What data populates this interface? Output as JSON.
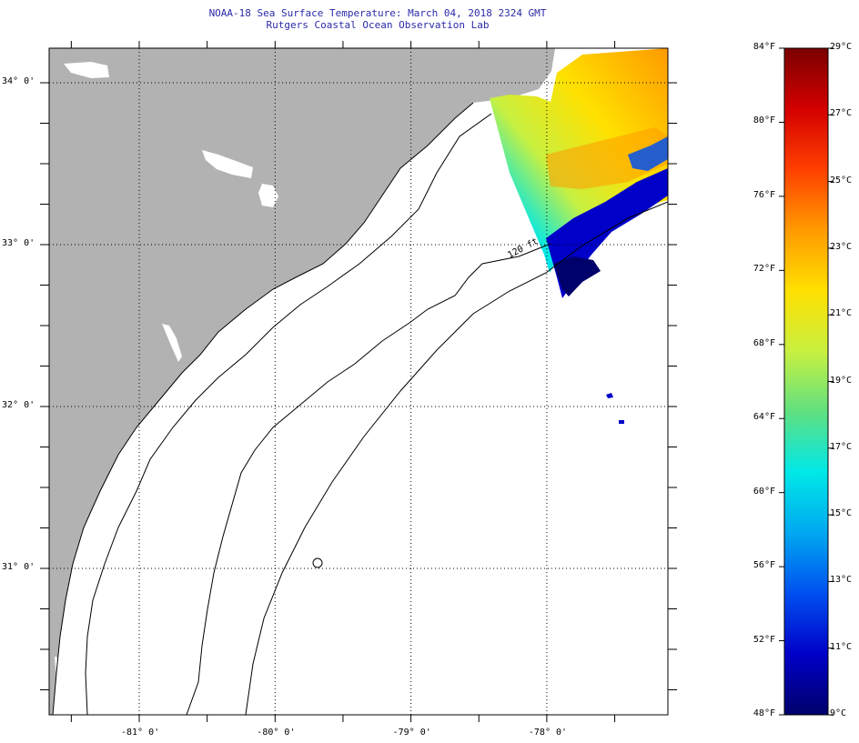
{
  "title": {
    "line1": "NOAA-18 Sea Surface Temperature:  March 04, 2018 2324 GMT",
    "line2": "Rutgers Coastal Ocean Observation Lab"
  },
  "map": {
    "lon_ticks": [
      {
        "value": -81,
        "label": "-81° 0'"
      },
      {
        "value": -80,
        "label": "-80° 0'"
      },
      {
        "value": -79,
        "label": "-79° 0'"
      },
      {
        "value": -78,
        "label": "-78° 0'"
      }
    ],
    "lat_ticks": [
      {
        "value": 34,
        "label": "34° 0'"
      },
      {
        "value": 33,
        "label": "33° 0'"
      },
      {
        "value": 32,
        "label": "32° 0'"
      },
      {
        "value": 31,
        "label": "31° 0'"
      }
    ],
    "isobath_label": "120 ft",
    "colors": {
      "land": "#b2b2b2",
      "ocean": "#ffffff",
      "grid": "#000000"
    }
  },
  "colorbar": {
    "fahrenheit": [
      "84°F",
      "80°F",
      "76°F",
      "72°F",
      "68°F",
      "64°F",
      "60°F",
      "56°F",
      "52°F",
      "48°F"
    ],
    "celsius": [
      "29°C",
      "27°C",
      "25°C",
      "23°C",
      "21°C",
      "19°C",
      "17°C",
      "15°C",
      "13°C",
      "11°C",
      "9°C"
    ],
    "colors_top_to_bottom": [
      "#7a0000",
      "#d40000",
      "#ff4000",
      "#ff9a00",
      "#ffe000",
      "#c8f040",
      "#60e080",
      "#00e8e8",
      "#00a8f0",
      "#0050f0",
      "#0000c8",
      "#00006a"
    ]
  }
}
